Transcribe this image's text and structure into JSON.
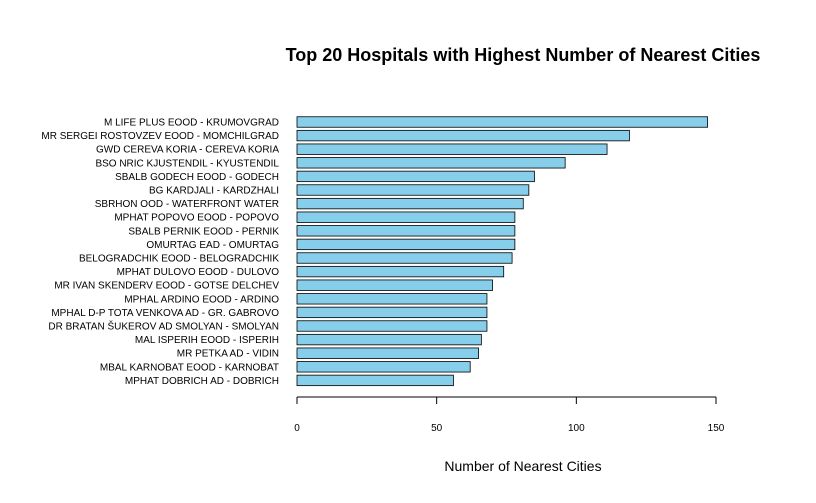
{
  "chart_data": {
    "type": "bar",
    "orientation": "horizontal",
    "title": "Top 20 Hospitals with Highest Number of Nearest Cities",
    "xlabel": "Number of Nearest Cities",
    "ylabel": "",
    "xlim": [
      0,
      150
    ],
    "xticks": [
      "0",
      "50",
      "100",
      "150"
    ],
    "grid": false,
    "bar_color": "#87CEEB",
    "categories": [
      "M LIFE PLUS EOOD - KRUMOVGRAD",
      "MR SERGEI ROSTOVZEV EOOD - MOMCHILGRAD",
      "GWD CEREVA KORIA - CEREVA KORIA",
      "BSO NRIC KJUSTENDIL - KYUSTENDIL",
      "SBALB GODECH EOOD - GODECH",
      "BG KARDJALI - KARDZHALI",
      "SBRHON OOD - WATERFRONT WATER",
      "MPHAT POPOVO EOOD - POPOVO",
      "SBALB PERNIK EOOD - PERNIK",
      "OMURTAG EAD - OMURTAG",
      "BELOGRADCHIK EOOD - BELOGRADCHIK",
      "MPHAT DULOVO EOOD - DULOVO",
      "MR IVAN SKENDERV EOOD - GOTSE DELCHEV",
      "MPHAL ARDINO EOOD - ARDINO",
      "MPHAL D-P TOTA VENKOVA AD - GR. GABROVO",
      "DR BRATAN ŠUKEROV AD SMOLYAN - SMOLYAN",
      "MAL ISPERIH EOOD - ISPERIH",
      "MR PETKA AD - VIDIN",
      "MBAL KARNOBAT EOOD - KARNOBAT",
      "MPHAT DOBRICH AD - DOBRICH"
    ],
    "values": [
      147,
      119,
      111,
      96,
      85,
      83,
      81,
      78,
      78,
      78,
      77,
      74,
      70,
      68,
      68,
      68,
      66,
      65,
      62,
      56
    ]
  }
}
